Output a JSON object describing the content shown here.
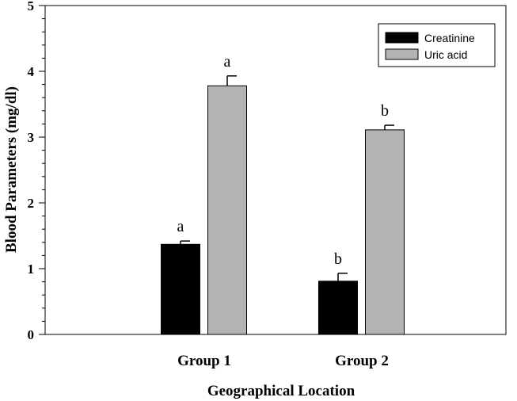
{
  "chart_data": {
    "type": "bar",
    "title": "",
    "xlabel": "Geographical Location",
    "ylabel": "Blood Parameters (mg/dl)",
    "categories": [
      "Group 1",
      "Group 2"
    ],
    "ylim": [
      0,
      5
    ],
    "yticks": [
      "0",
      "1",
      "2",
      "3",
      "4",
      "5"
    ],
    "grid": false,
    "legend_position": "top-right",
    "series": [
      {
        "name": "Creatinine",
        "color": "#000000",
        "values": [
          1.37,
          0.81
        ],
        "errors": [
          0.05,
          0.12
        ],
        "labels": [
          "a",
          "b"
        ]
      },
      {
        "name": "Uric acid",
        "color": "#b3b3b3",
        "values": [
          3.78,
          3.11
        ],
        "errors": [
          0.15,
          0.07
        ],
        "labels": [
          "a",
          "b"
        ]
      }
    ]
  }
}
